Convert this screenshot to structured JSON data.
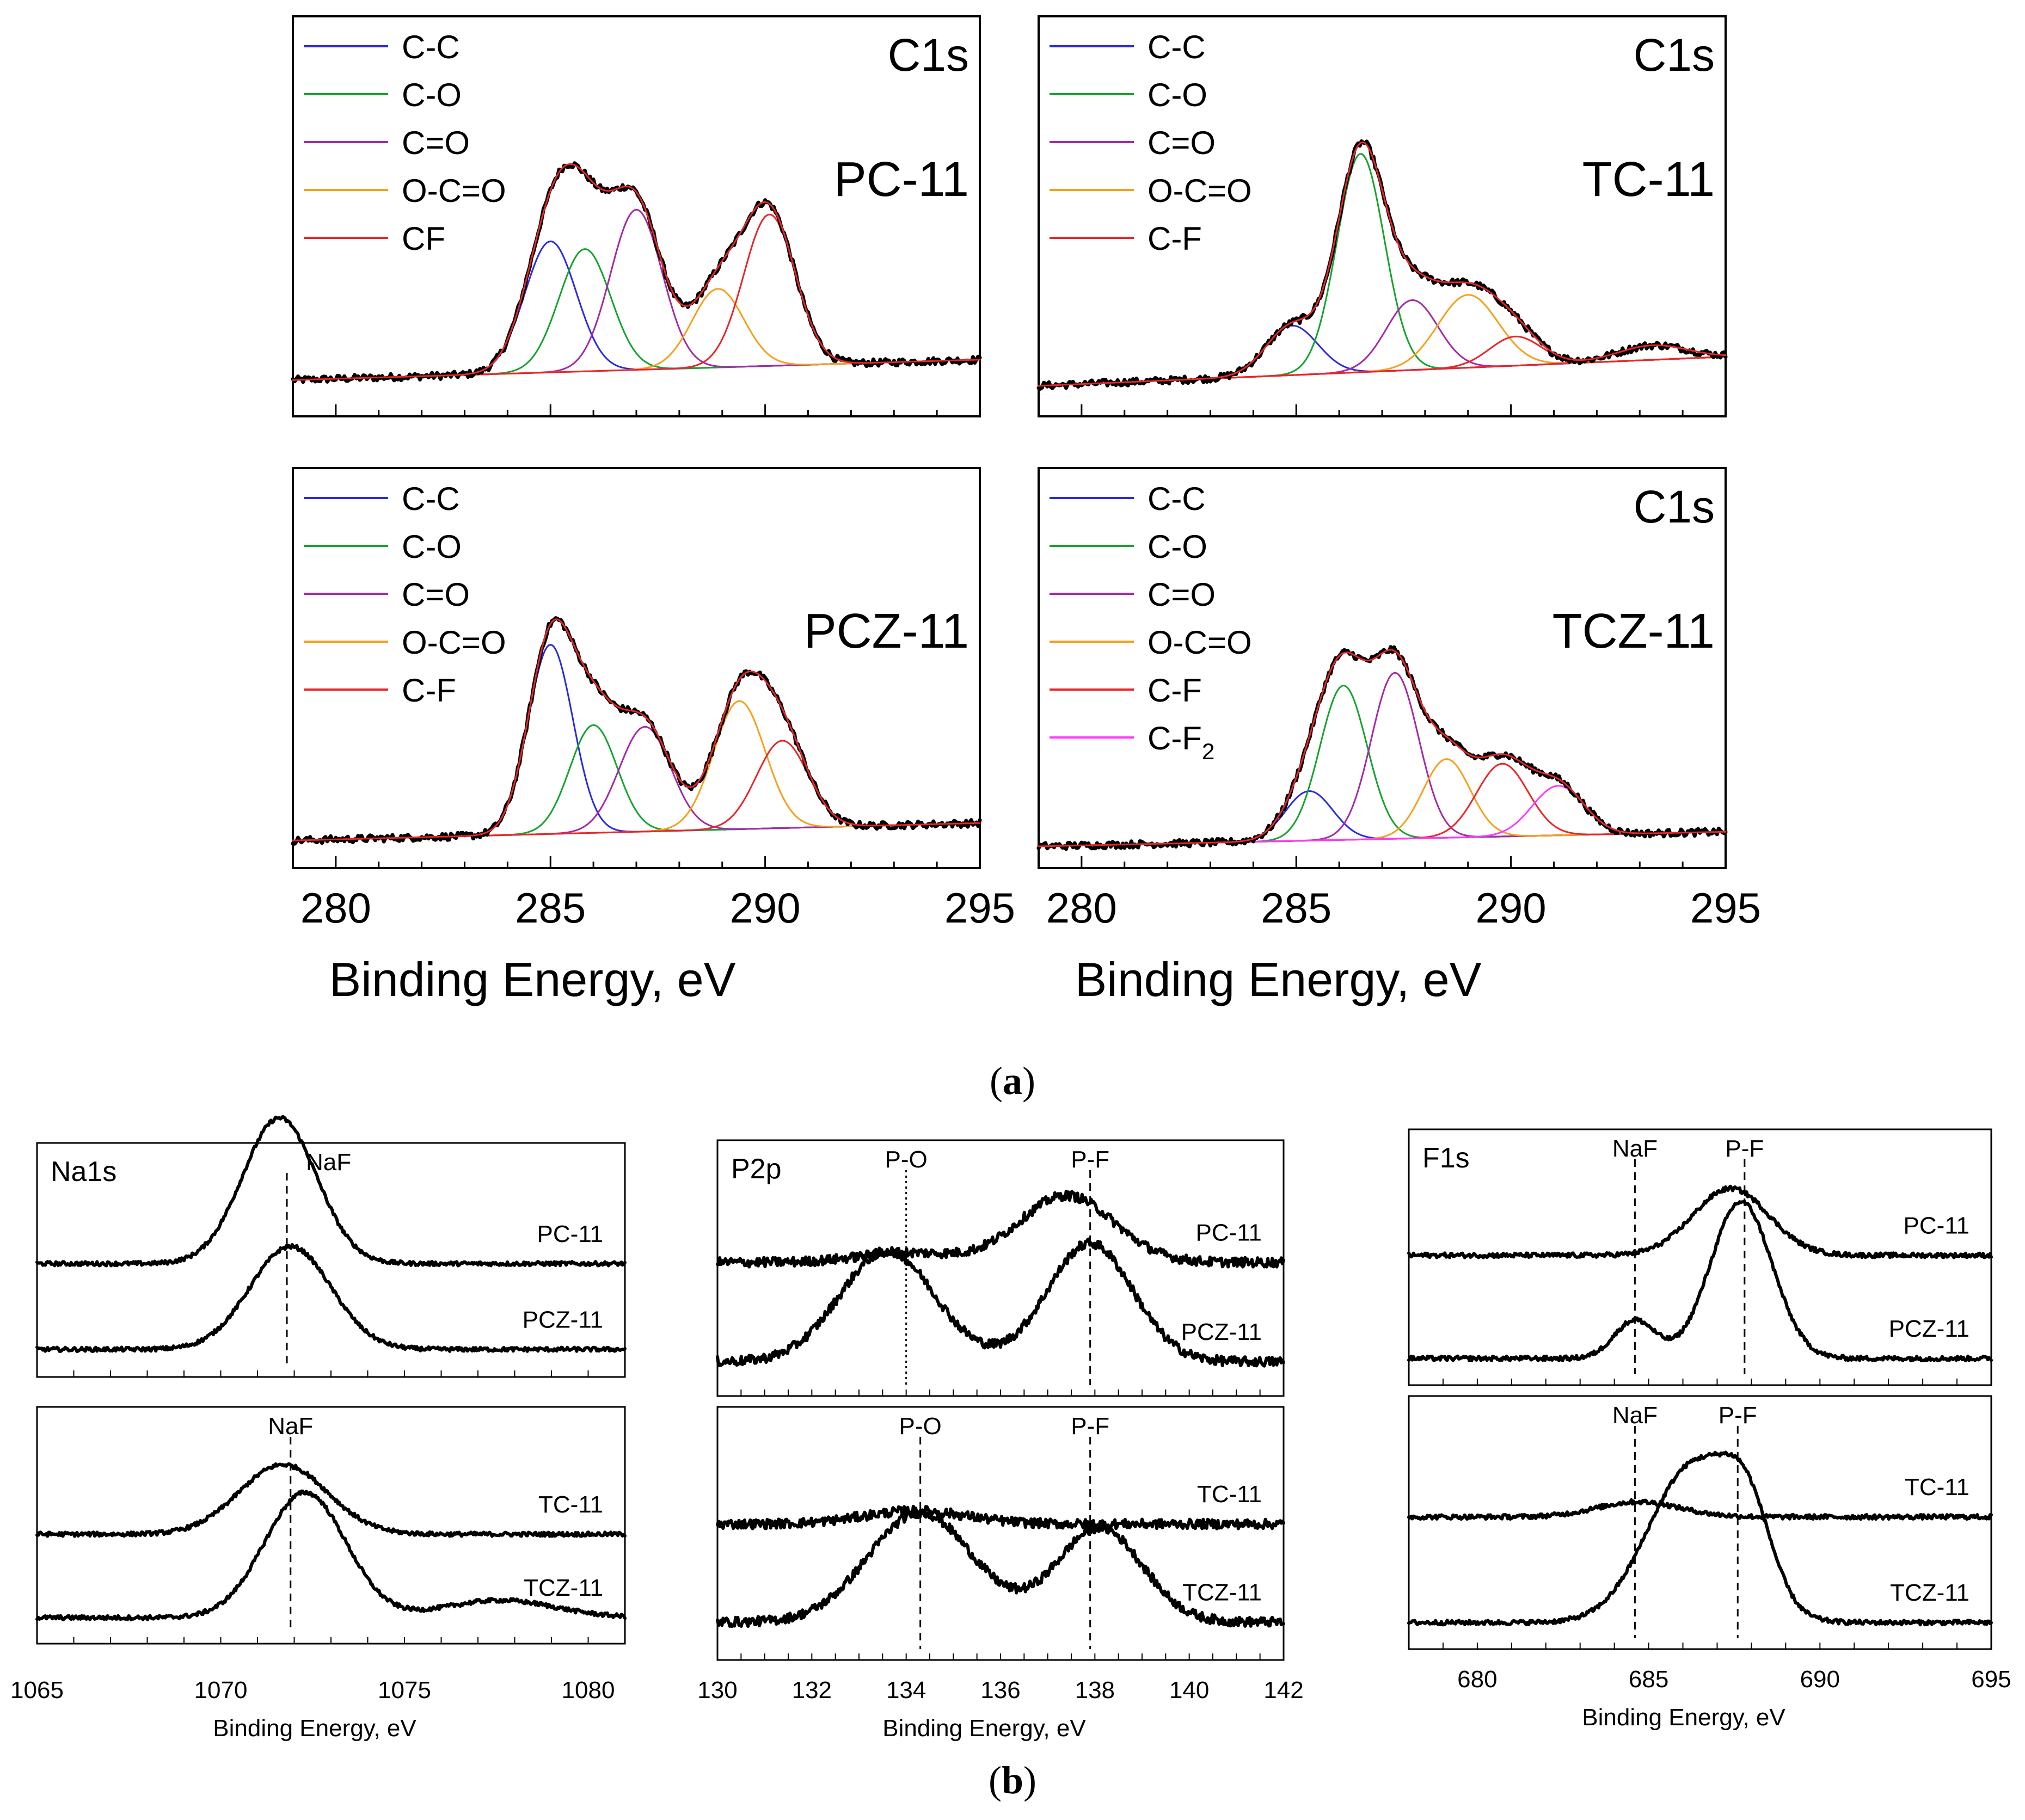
{
  "figure": {
    "caption_a": "a",
    "caption_b": "b"
  },
  "colors": {
    "C-C": "#2a2ae6",
    "C-O": "#16a32e",
    "C=O": "#a52aa5",
    "O-C=O": "#f5a01a",
    "C-F": "#e8262a",
    "CF": "#e8262a",
    "C-F2": "#ff38ff",
    "envelope": "#e8262a",
    "data": "#000000"
  },
  "chart_data": [
    {
      "id": "c1s-pc11",
      "type": "line",
      "title": "C1s",
      "sample_label": "PC-11",
      "xlabel": "",
      "xlim": [
        279,
        295
      ],
      "xticks": [],
      "ylim": [
        0,
        1
      ],
      "legend": [
        "C-C",
        "C-O",
        "C=O",
        "O-C=O",
        "CF"
      ],
      "baseline": {
        "left": 0.05,
        "right": 0.12
      },
      "components": [
        {
          "name": "C-C",
          "center": 285.0,
          "height": 0.45,
          "width": 0.6
        },
        {
          "name": "C-O",
          "center": 285.8,
          "height": 0.42,
          "width": 0.6
        },
        {
          "name": "C=O",
          "center": 287.0,
          "height": 0.55,
          "width": 0.6
        },
        {
          "name": "O-C=O",
          "center": 288.9,
          "height": 0.27,
          "width": 0.6
        },
        {
          "name": "CF",
          "center": 290.1,
          "height": 0.52,
          "width": 0.6
        }
      ]
    },
    {
      "id": "c1s-tc11",
      "type": "line",
      "title": "C1s",
      "sample_label": "TC-11",
      "xlabel": "",
      "xlim": [
        279,
        295
      ],
      "xticks": [],
      "ylim": [
        0,
        1
      ],
      "legend": [
        "C-C",
        "C-O",
        "C=O",
        "O-C=O",
        "C-F"
      ],
      "baseline": {
        "left": 0.03,
        "right": 0.13
      },
      "components": [
        {
          "name": "C-C",
          "center": 284.9,
          "height": 0.17,
          "width": 0.6
        },
        {
          "name": "C-O",
          "center": 286.5,
          "height": 0.75,
          "width": 0.55
        },
        {
          "name": "C=O",
          "center": 287.7,
          "height": 0.24,
          "width": 0.6
        },
        {
          "name": "O-C=O",
          "center": 289.0,
          "height": 0.25,
          "width": 0.7
        },
        {
          "name": "C-F",
          "center": 290.1,
          "height": 0.1,
          "width": 0.6
        },
        {
          "name": "tail",
          "center": 293.3,
          "height": 0.05,
          "width": 0.8
        }
      ]
    },
    {
      "id": "c1s-pcz11",
      "type": "line",
      "title": "",
      "sample_label": "PCZ-11",
      "xlabel": "Binding Energy, eV",
      "xlim": [
        279,
        295
      ],
      "xticks": [
        280,
        285,
        290,
        295
      ],
      "ylim": [
        0,
        1
      ],
      "legend": [
        "C-C",
        "C-O",
        "C=O",
        "O-C=O",
        "C-F"
      ],
      "baseline": {
        "left": 0.02,
        "right": 0.08
      },
      "components": [
        {
          "name": "C-C",
          "center": 285.0,
          "height": 0.65,
          "width": 0.52
        },
        {
          "name": "C-O",
          "center": 286.0,
          "height": 0.37,
          "width": 0.55
        },
        {
          "name": "C=O",
          "center": 287.2,
          "height": 0.36,
          "width": 0.6
        },
        {
          "name": "O-C=O",
          "center": 289.4,
          "height": 0.44,
          "width": 0.6
        },
        {
          "name": "C-F",
          "center": 290.4,
          "height": 0.3,
          "width": 0.6
        }
      ]
    },
    {
      "id": "c1s-tcz11",
      "type": "line",
      "title": "C1s",
      "sample_label": "TCZ-11",
      "xlabel": "Binding Energy, eV",
      "xlim": [
        279,
        295
      ],
      "xticks": [
        280,
        285,
        290,
        295
      ],
      "ylim": [
        0,
        1
      ],
      "legend": [
        "C-C",
        "C-O",
        "C=O",
        "O-C=O",
        "C-F",
        "C-F2"
      ],
      "legend_display": [
        "C-C",
        "C-O",
        "C=O",
        "O-C=O",
        "C-F",
        "C-F",
        "2"
      ],
      "baseline": {
        "left": 0.0,
        "right": 0.05
      },
      "components": [
        {
          "name": "C-C",
          "center": 285.3,
          "height": 0.17,
          "width": 0.55
        },
        {
          "name": "C-O",
          "center": 286.1,
          "height": 0.53,
          "width": 0.55
        },
        {
          "name": "C=O",
          "center": 287.3,
          "height": 0.57,
          "width": 0.55
        },
        {
          "name": "O-C=O",
          "center": 288.5,
          "height": 0.27,
          "width": 0.55
        },
        {
          "name": "C-F",
          "center": 289.8,
          "height": 0.25,
          "width": 0.6
        },
        {
          "name": "C-F2",
          "center": 291.1,
          "height": 0.17,
          "width": 0.6
        }
      ]
    },
    {
      "id": "na1s",
      "type": "line",
      "title": "Na1s",
      "xlabel": "Binding Energy, eV",
      "xlim": [
        1065,
        1081
      ],
      "xticks": [
        1065,
        1070,
        1075,
        1080
      ],
      "sub_panels": [
        {
          "spectra": [
            {
              "label": "PC-11",
              "center": 1071.6,
              "height": 0.85,
              "width": 1.0,
              "offset": 0.55
            },
            {
              "label": "PCZ-11",
              "center": 1071.9,
              "height": 0.6,
              "width": 1.1,
              "offset": 0.05
            }
          ],
          "markers": [
            {
              "x": 1071.8,
              "label": "NaF"
            }
          ]
        },
        {
          "spectra": [
            {
              "label": "TC-11",
              "center": 1071.7,
              "height": 0.4,
              "width": 1.2,
              "offset": 0.52
            },
            {
              "label": "TCZ-11",
              "center": 1072.3,
              "height": 0.72,
              "width": 1.1,
              "offset": 0.04,
              "extra": {
                "center": 1077.6,
                "height": 0.1,
                "width": 1.5
              }
            }
          ],
          "markers": [
            {
              "x": 1071.9,
              "label": "NaF"
            }
          ]
        }
      ]
    },
    {
      "id": "p2p",
      "type": "line",
      "title": "P2p",
      "xlabel": "Binding Energy, eV",
      "xlim": [
        130,
        142
      ],
      "xticks": [
        130,
        132,
        134,
        136,
        138,
        140,
        142
      ],
      "sub_panels": [
        {
          "spectra": [
            {
              "label": "PC-11",
              "center": 137.4,
              "height": 0.35,
              "width": 1.0,
              "offset": 0.6,
              "extra": {
                "center": 134.0,
                "height": 0.05,
                "width": 1.0
              }
            },
            {
              "label": "PCZ-11",
              "center": 137.9,
              "height": 0.62,
              "width": 0.9,
              "offset": 0.08,
              "extra": {
                "center": 133.6,
                "height": 0.58,
                "width": 1.0
              }
            }
          ],
          "markers": [
            {
              "x": 134.0,
              "label": "P-O",
              "style": "dotted"
            },
            {
              "x": 137.9,
              "label": "P-F"
            }
          ]
        },
        {
          "spectra": [
            {
              "label": "TC-11",
              "center": 134.2,
              "height": 0.07,
              "width": 1.1,
              "offset": 0.62
            },
            {
              "label": "TCZ-11",
              "center": 138.1,
              "height": 0.5,
              "width": 0.9,
              "offset": 0.1,
              "extra": {
                "center": 134.3,
                "height": 0.58,
                "width": 1.1
              }
            }
          ],
          "markers": [
            {
              "x": 134.3,
              "label": "P-O"
            },
            {
              "x": 137.9,
              "label": "P-F"
            }
          ]
        }
      ]
    },
    {
      "id": "f1s",
      "type": "line",
      "title": "F1s",
      "xlabel": "Binding Energy, eV",
      "xlim": [
        678,
        695
      ],
      "xticks": [
        680,
        685,
        690,
        695
      ],
      "sub_panels": [
        {
          "spectra": [
            {
              "label": "PC-11",
              "center": 687.4,
              "height": 0.35,
              "width": 1.1,
              "offset": 0.58
            },
            {
              "label": "PCZ-11",
              "center": 687.7,
              "height": 0.82,
              "width": 0.9,
              "offset": 0.04,
              "extra": {
                "center": 684.6,
                "height": 0.2,
                "width": 0.6
              }
            }
          ],
          "markers": [
            {
              "x": 684.6,
              "label": "NaF"
            },
            {
              "x": 687.8,
              "label": "P-F"
            }
          ]
        },
        {
          "spectra": [
            {
              "label": "TC-11",
              "center": 684.7,
              "height": 0.08,
              "width": 1.2,
              "offset": 0.6
            },
            {
              "label": "TCZ-11",
              "center": 686.3,
              "height": 0.83,
              "width": 1.3,
              "offset": 0.04,
              "extra": {
                "center": 687.9,
                "height": 0.4,
                "width": 0.7
              }
            }
          ],
          "markers": [
            {
              "x": 684.6,
              "label": "NaF"
            },
            {
              "x": 687.6,
              "label": "P-F"
            }
          ]
        }
      ]
    }
  ]
}
